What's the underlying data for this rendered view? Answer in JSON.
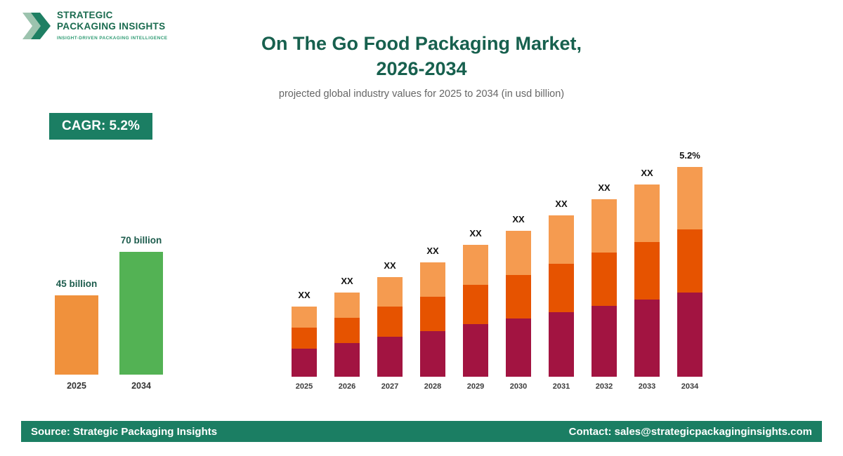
{
  "brand": {
    "name_line1": "STRATEGIC",
    "name_line2": "PACKAGING INSIGHTS",
    "tagline": "INSIGHT-DRIVEN PACKAGING INTELLIGENCE",
    "color": "#1B7E63"
  },
  "header": {
    "title_line1": "On The Go Food Packaging Market,",
    "title_line2": "2026-2034",
    "subtitle": "projected global industry values for 2025 to 2034 (in usd billion)"
  },
  "cagr_badge": "CAGR: 5.2%",
  "mini_chart": {
    "type": "bar",
    "categories": [
      "2025",
      "2034"
    ],
    "values": [
      45,
      70
    ],
    "value_labels": [
      "45 billion",
      "70 billion"
    ],
    "colors": [
      "#F0913C",
      "#53B254"
    ]
  },
  "chart_data": {
    "type": "stacked-bar",
    "title": "On The Go Food Packaging Market, 2026-2034",
    "categories": [
      "2025",
      "2026",
      "2027",
      "2028",
      "2029",
      "2030",
      "2031",
      "2032",
      "2033",
      "2034"
    ],
    "bar_labels": [
      "XX",
      "XX",
      "XX",
      "XX",
      "XX",
      "XX",
      "XX",
      "XX",
      "XX",
      "5.2%"
    ],
    "series": [
      {
        "name": "bottom",
        "color": "#A21441",
        "values": [
          40,
          48,
          57,
          65,
          75,
          83,
          92,
          101,
          110,
          120
        ]
      },
      {
        "name": "middle",
        "color": "#E65300",
        "values": [
          30,
          36,
          43,
          49,
          56,
          62,
          69,
          76,
          82,
          90
        ]
      },
      {
        "name": "top",
        "color": "#F59B50",
        "values": [
          30,
          36,
          42,
          49,
          57,
          63,
          69,
          76,
          82,
          89
        ]
      }
    ],
    "legend": "none",
    "ylabel": "",
    "xlabel": ""
  },
  "footer": {
    "source": "Source: Strategic Packaging Insights",
    "contact": "Contact: sales@strategicpackaginginsights.com"
  }
}
